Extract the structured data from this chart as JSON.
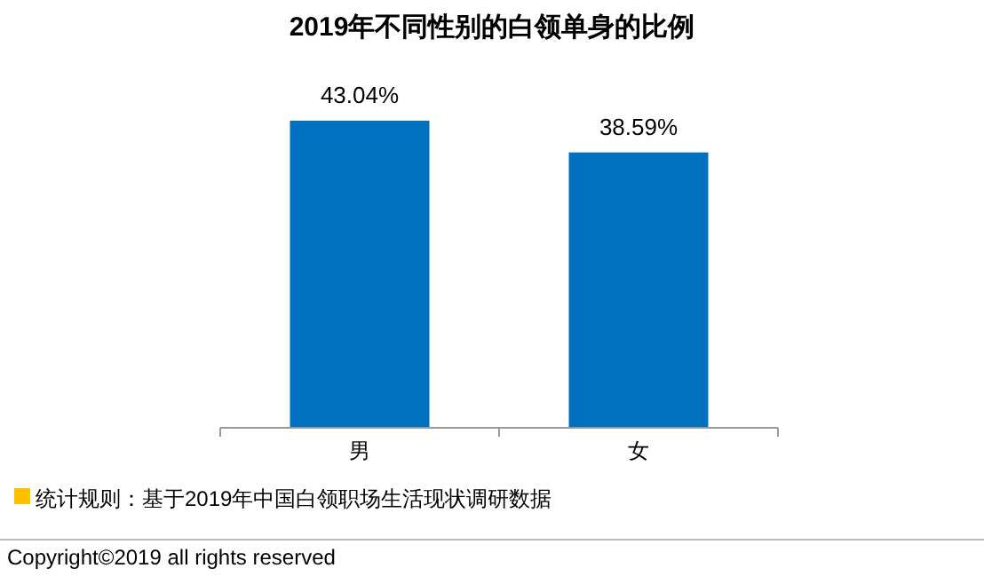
{
  "chart_data": {
    "type": "bar",
    "title": "2019年不同性别的白领单身的比例",
    "categories": [
      "男",
      "女"
    ],
    "values": [
      43.04,
      38.59
    ],
    "value_labels": [
      "43.04%",
      "38.59%"
    ],
    "color": "#0070c0",
    "tick_labels": "x",
    "annotations": [
      "统计规则：基于2019年中国白领职场生活现状调研数据",
      "Copyright©2019 all rights reserved"
    ]
  }
}
